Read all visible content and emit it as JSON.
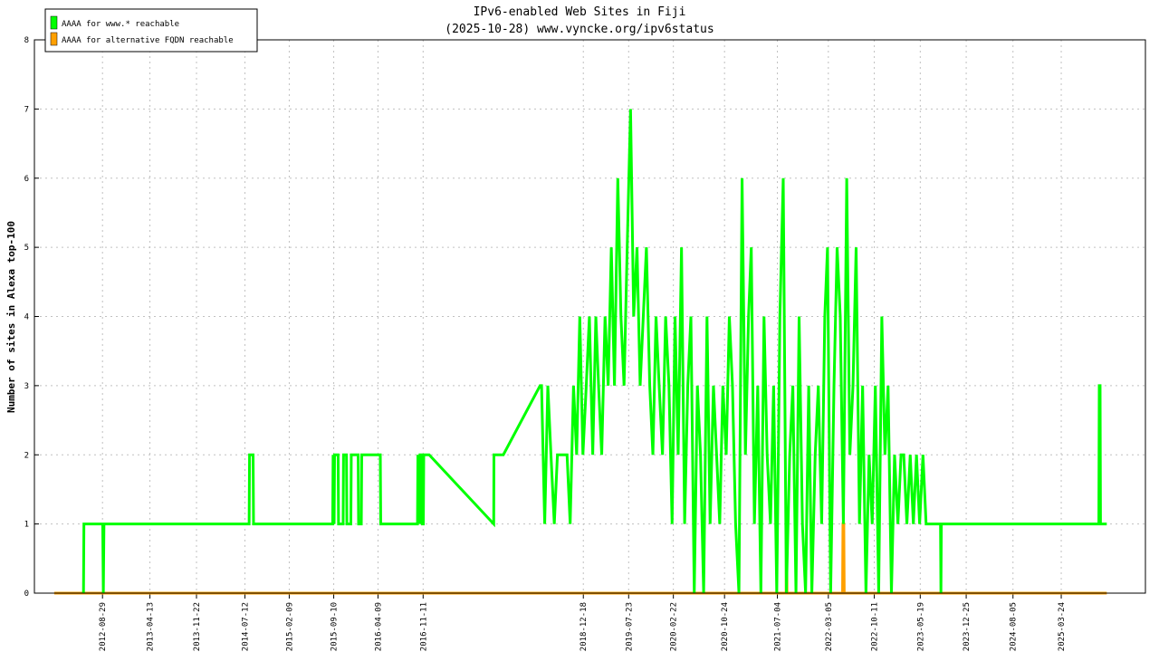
{
  "chart_data": {
    "type": "line",
    "title": "IPv6-enabled Web Sites in Fiji",
    "subtitle": "(2025-10-28) www.vyncke.org/ipv6status",
    "y_label": "Number of sites in Alexa top-100",
    "xlim": [
      "2011-10-08",
      "2026-05-01"
    ],
    "xticks": [
      "2012-08-29",
      "2013-04-13",
      "2013-11-22",
      "2014-07-12",
      "2015-02-09",
      "2015-09-10",
      "2016-04-09",
      "2016-11-11",
      "2018-12-18",
      "2019-07-23",
      "2020-02-22",
      "2020-10-24",
      "2021-07-04",
      "2022-03-05",
      "2022-10-11",
      "2023-05-19",
      "2023-12-25",
      "2024-08-05",
      "2025-03-24"
    ],
    "ylim": [
      0,
      8
    ],
    "yticks": [
      0,
      1,
      2,
      3,
      4,
      5,
      6,
      7,
      8
    ],
    "grid": true,
    "legend": "top-left",
    "series": [
      {
        "name": "AAAA for www.* reachable",
        "color": "#00ff00",
        "x": [
          "2012-05-30",
          "2012-06-01",
          "2012-08-30",
          "2012-09-02",
          "2012-09-05",
          "2012-09-15",
          "2014-08-01",
          "2014-08-03",
          "2014-08-20",
          "2014-08-22",
          "2015-09-05",
          "2015-09-07",
          "2015-09-12",
          "2015-09-14",
          "2015-10-01",
          "2015-10-03",
          "2015-10-25",
          "2015-10-27",
          "2015-11-10",
          "2015-11-12",
          "2015-12-01",
          "2015-12-03",
          "2016-01-05",
          "2016-01-07",
          "2016-01-20",
          "2016-01-22",
          "2016-04-20",
          "2016-04-22",
          "2016-10-15",
          "2016-10-17",
          "2016-10-25",
          "2016-10-27",
          "2016-11-05",
          "2016-11-07",
          "2016-11-12",
          "2016-11-14",
          "2016-12-10",
          "2017-10-15",
          "2017-10-16",
          "2017-11-30",
          "2018-05-25",
          "2018-06-01",
          "2018-06-16",
          "2018-07-01",
          "2018-07-16",
          "2018-08-01",
          "2018-08-16",
          "2018-09-01",
          "2018-09-16",
          "2018-10-01",
          "2018-10-16",
          "2018-11-01",
          "2018-11-16",
          "2018-12-01",
          "2018-12-16",
          "2019-01-01",
          "2019-01-16",
          "2019-02-01",
          "2019-02-16",
          "2019-03-01",
          "2019-03-16",
          "2019-04-01",
          "2019-04-16",
          "2019-05-01",
          "2019-05-16",
          "2019-06-01",
          "2019-06-16",
          "2019-07-01",
          "2019-07-16",
          "2019-08-01",
          "2019-08-16",
          "2019-09-01",
          "2019-09-16",
          "2019-10-01",
          "2019-10-16",
          "2019-11-01",
          "2019-11-16",
          "2019-12-01",
          "2019-12-16",
          "2020-01-01",
          "2020-01-16",
          "2020-02-01",
          "2020-02-16",
          "2020-03-01",
          "2020-03-16",
          "2020-04-01",
          "2020-04-16",
          "2020-05-01",
          "2020-05-16",
          "2020-06-01",
          "2020-06-16",
          "2020-07-01",
          "2020-07-16",
          "2020-08-01",
          "2020-08-16",
          "2020-09-01",
          "2020-09-16",
          "2020-10-01",
          "2020-10-16",
          "2020-11-01",
          "2020-11-16",
          "2020-12-01",
          "2020-12-16",
          "2021-01-01",
          "2021-01-16",
          "2021-02-01",
          "2021-02-16",
          "2021-03-01",
          "2021-03-16",
          "2021-04-01",
          "2021-04-16",
          "2021-05-01",
          "2021-05-16",
          "2021-06-01",
          "2021-06-16",
          "2021-07-01",
          "2021-07-16",
          "2021-08-01",
          "2021-08-16",
          "2021-09-01",
          "2021-09-16",
          "2021-10-01",
          "2021-10-16",
          "2021-11-01",
          "2021-11-16",
          "2021-12-01",
          "2021-12-16",
          "2022-01-01",
          "2022-01-16",
          "2022-02-01",
          "2022-02-16",
          "2022-03-01",
          "2022-03-16",
          "2022-04-01",
          "2022-04-16",
          "2022-05-01",
          "2022-05-16",
          "2022-06-01",
          "2022-06-16",
          "2022-07-01",
          "2022-07-16",
          "2022-08-01",
          "2022-08-16",
          "2022-09-01",
          "2022-09-16",
          "2022-10-01",
          "2022-10-16",
          "2022-11-01",
          "2022-11-16",
          "2022-12-01",
          "2022-12-16",
          "2023-01-01",
          "2023-01-16",
          "2023-02-01",
          "2023-02-16",
          "2023-03-01",
          "2023-03-16",
          "2023-04-01",
          "2023-04-16",
          "2023-05-01",
          "2023-05-16",
          "2023-06-01",
          "2023-06-16",
          "2023-06-20",
          "2023-08-24",
          "2023-08-26",
          "2023-08-28",
          "2025-09-20",
          "2025-09-22",
          "2025-09-26",
          "2025-09-28",
          "2025-10-28"
        ],
        "values": [
          0,
          1,
          1,
          0,
          1,
          1,
          1,
          2,
          2,
          1,
          1,
          2,
          1,
          2,
          2,
          1,
          1,
          2,
          2,
          1,
          1,
          2,
          2,
          1,
          1,
          2,
          2,
          1,
          1,
          2,
          1,
          2,
          2,
          1,
          1,
          2,
          2,
          1,
          2,
          2,
          3,
          3,
          1,
          3,
          2,
          1,
          2,
          2,
          2,
          2,
          1,
          3,
          2,
          4,
          2,
          3,
          4,
          2,
          4,
          3,
          2,
          4,
          3,
          5,
          3,
          6,
          4,
          3,
          5,
          7,
          4,
          5,
          3,
          4,
          5,
          3,
          2,
          4,
          3,
          2,
          4,
          3,
          1,
          4,
          2,
          5,
          1,
          3,
          4,
          0,
          3,
          2,
          0,
          4,
          1,
          3,
          2,
          1,
          3,
          2,
          4,
          3,
          1,
          0,
          6,
          2,
          4,
          5,
          1,
          3,
          0,
          4,
          2,
          1,
          3,
          0,
          4,
          6,
          0,
          2,
          3,
          0,
          4,
          1,
          0,
          3,
          0,
          2,
          3,
          1,
          4,
          5,
          0,
          3,
          5,
          4,
          1,
          6,
          2,
          3,
          5,
          1,
          3,
          0,
          2,
          1,
          3,
          0,
          4,
          2,
          3,
          0,
          2,
          1,
          2,
          2,
          1,
          2,
          1,
          2,
          1,
          2,
          1,
          1,
          1,
          0,
          1,
          1,
          3,
          3,
          1,
          1
        ]
      },
      {
        "name": "AAAA for alternative FQDN reachable",
        "color": "#ffa000",
        "x": [
          "2012-01-11",
          "2021-08-15",
          "2021-08-17",
          "2021-08-19",
          "2022-05-12",
          "2022-05-14",
          "2022-05-18",
          "2022-05-20",
          "2025-10-28"
        ],
        "values": [
          0,
          0,
          1,
          0,
          0,
          1,
          1,
          0,
          0
        ]
      }
    ]
  }
}
